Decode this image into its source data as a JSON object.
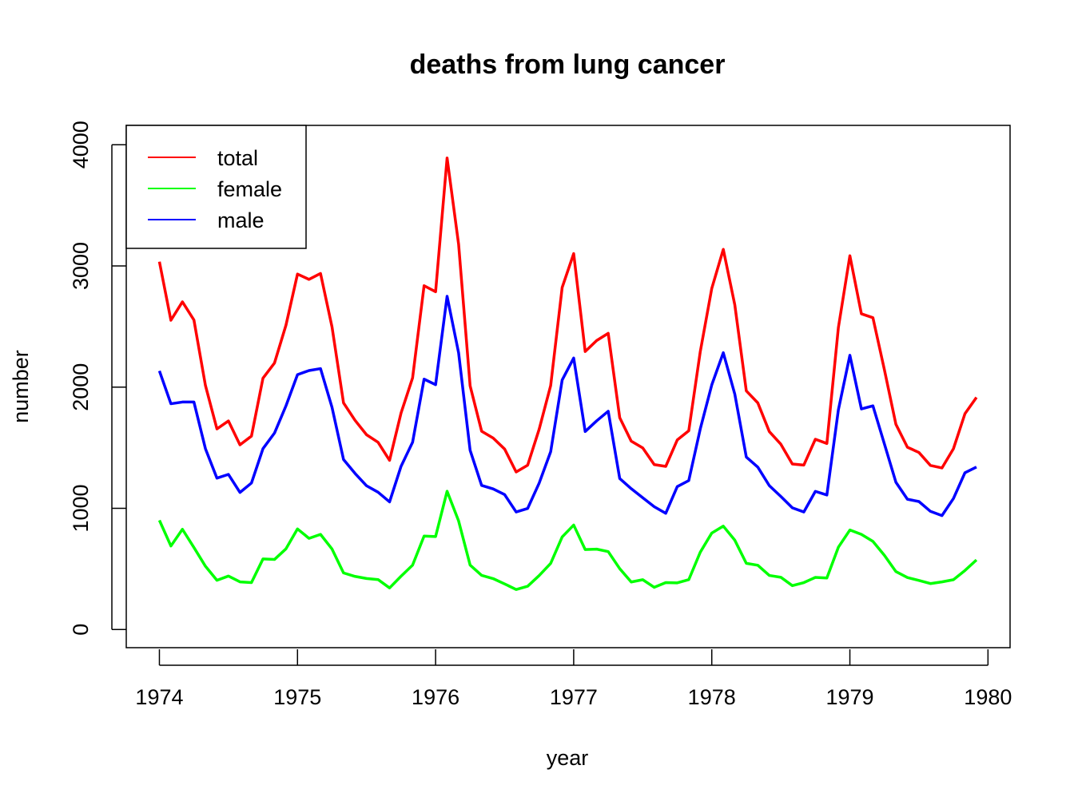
{
  "chart_data": {
    "type": "line",
    "title": "deaths from lung cancer",
    "xlabel": "year",
    "ylabel": "number",
    "xlim": [
      1973.76,
      1980.16
    ],
    "ylim": [
      -150,
      4160
    ],
    "x_ticks": [
      1974,
      1975,
      1976,
      1977,
      1978,
      1979,
      1980
    ],
    "y_ticks": [
      0,
      1000,
      2000,
      3000,
      4000
    ],
    "grid": false,
    "legend_position": "top-left",
    "x_start": 1974,
    "x_step": 0.08333333,
    "series": [
      {
        "name": "total",
        "color": "#ff0000",
        "values": [
          3035,
          2552,
          2704,
          2554,
          2014,
          1655,
          1721,
          1524,
          1596,
          2074,
          2199,
          2512,
          2933,
          2889,
          2938,
          2497,
          1870,
          1726,
          1607,
          1545,
          1396,
          1787,
          2076,
          2837,
          2787,
          3891,
          3179,
          2011,
          1636,
          1580,
          1489,
          1300,
          1356,
          1653,
          2013,
          2823,
          3102,
          2294,
          2385,
          2444,
          1748,
          1554,
          1498,
          1361,
          1346,
          1564,
          1640,
          2293,
          2815,
          3137,
          2679,
          1969,
          1870,
          1633,
          1529,
          1366,
          1357,
          1570,
          1535,
          2491,
          3084,
          2605,
          2573,
          2143,
          1693,
          1504,
          1461,
          1354,
          1333,
          1492,
          1781,
          1915
        ]
      },
      {
        "name": "female",
        "color": "#00ff00",
        "values": [
          901,
          689,
          827,
          677,
          522,
          406,
          441,
          393,
          387,
          582,
          578,
          666,
          830,
          752,
          785,
          664,
          467,
          438,
          421,
          412,
          343,
          440,
          531,
          771,
          767,
          1141,
          896,
          532,
          447,
          420,
          376,
          330,
          357,
          445,
          546,
          764,
          862,
          660,
          663,
          643,
          502,
          392,
          411,
          348,
          387,
          385,
          411,
          638,
          796,
          853,
          737,
          546,
          530,
          446,
          431,
          362,
          387,
          430,
          425,
          679,
          821,
          785,
          727,
          612,
          478,
          429,
          405,
          379,
          393,
          411,
          487,
          574
        ]
      },
      {
        "name": "male",
        "color": "#0000ff",
        "values": [
          2134,
          1863,
          1877,
          1877,
          1492,
          1249,
          1280,
          1131,
          1209,
          1492,
          1621,
          1846,
          2103,
          2137,
          2153,
          1833,
          1403,
          1288,
          1186,
          1133,
          1053,
          1347,
          1545,
          2066,
          2020,
          2750,
          2283,
          1479,
          1189,
          1160,
          1113,
          970,
          999,
          1208,
          1467,
          2059,
          2240,
          1634,
          1722,
          1801,
          1246,
          1162,
          1087,
          1013,
          959,
          1179,
          1229,
          1655,
          2019,
          2284,
          1942,
          1423,
          1340,
          1187,
          1098,
          1004,
          970,
          1140,
          1110,
          1812,
          2263,
          1820,
          1846,
          1531,
          1215,
          1075,
          1056,
          975,
          940,
          1081,
          1294,
          1341
        ]
      }
    ]
  }
}
